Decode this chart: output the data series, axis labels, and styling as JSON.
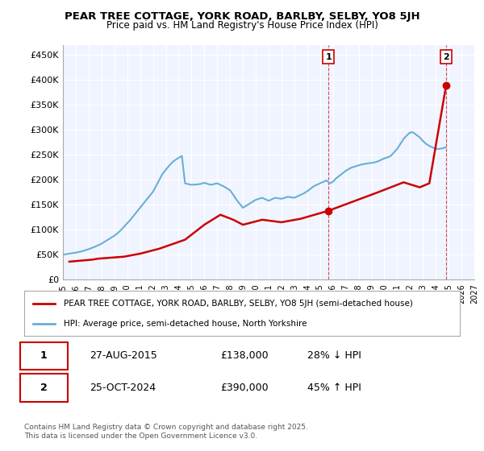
{
  "title": "PEAR TREE COTTAGE, YORK ROAD, BARLBY, SELBY, YO8 5JH",
  "subtitle": "Price paid vs. HM Land Registry's House Price Index (HPI)",
  "background_color": "#ffffff",
  "plot_bg_color": "#f0f4ff",
  "grid_color": "#ffffff",
  "ylim": [
    0,
    470000
  ],
  "yticks": [
    0,
    50000,
    100000,
    150000,
    200000,
    250000,
    300000,
    350000,
    400000,
    450000
  ],
  "ytick_labels": [
    "£0",
    "£50K",
    "£100K",
    "£150K",
    "£200K",
    "£250K",
    "£300K",
    "£350K",
    "£400K",
    "£450K"
  ],
  "xlim_start": 1995.0,
  "xlim_end": 2027.0,
  "xtick_years": [
    1995,
    1996,
    1997,
    1998,
    1999,
    2000,
    2001,
    2002,
    2003,
    2004,
    2005,
    2006,
    2007,
    2008,
    2009,
    2010,
    2011,
    2012,
    2013,
    2014,
    2015,
    2016,
    2017,
    2018,
    2019,
    2020,
    2021,
    2022,
    2023,
    2024,
    2025,
    2026,
    2027
  ],
  "marker1_x": 2015.65,
  "marker1_y": 138000,
  "marker1_label": "1",
  "marker2_x": 2024.81,
  "marker2_y": 390000,
  "marker2_label": "2",
  "vline1_x": 2015.65,
  "vline2_x": 2024.81,
  "hpi_color": "#6aaed6",
  "price_color": "#cc0000",
  "legend_entries": [
    "PEAR TREE COTTAGE, YORK ROAD, BARLBY, SELBY, YO8 5JH (semi-detached house)",
    "HPI: Average price, semi-detached house, North Yorkshire"
  ],
  "annotation1_date": "27-AUG-2015",
  "annotation1_price": "£138,000",
  "annotation1_hpi": "28% ↓ HPI",
  "annotation2_date": "25-OCT-2024",
  "annotation2_price": "£390,000",
  "annotation2_hpi": "45% ↑ HPI",
  "footnote": "Contains HM Land Registry data © Crown copyright and database right 2025.\nThis data is licensed under the Open Government Licence v3.0.",
  "hpi_data_x": [
    1995.0,
    1995.25,
    1995.5,
    1995.75,
    1996.0,
    1996.25,
    1996.5,
    1996.75,
    1997.0,
    1997.25,
    1997.5,
    1997.75,
    1998.0,
    1998.25,
    1998.5,
    1998.75,
    1999.0,
    1999.25,
    1999.5,
    1999.75,
    2000.0,
    2000.25,
    2000.5,
    2000.75,
    2001.0,
    2001.25,
    2001.5,
    2001.75,
    2002.0,
    2002.25,
    2002.5,
    2002.75,
    2003.0,
    2003.25,
    2003.5,
    2003.75,
    2004.0,
    2004.25,
    2004.5,
    2004.75,
    2005.0,
    2005.25,
    2005.5,
    2005.75,
    2006.0,
    2006.25,
    2006.5,
    2006.75,
    2007.0,
    2007.25,
    2007.5,
    2007.75,
    2008.0,
    2008.25,
    2008.5,
    2008.75,
    2009.0,
    2009.25,
    2009.5,
    2009.75,
    2010.0,
    2010.25,
    2010.5,
    2010.75,
    2011.0,
    2011.25,
    2011.5,
    2011.75,
    2012.0,
    2012.25,
    2012.5,
    2012.75,
    2013.0,
    2013.25,
    2013.5,
    2013.75,
    2014.0,
    2014.25,
    2014.5,
    2014.75,
    2015.0,
    2015.25,
    2015.5,
    2015.75,
    2016.0,
    2016.25,
    2016.5,
    2016.75,
    2017.0,
    2017.25,
    2017.5,
    2017.75,
    2018.0,
    2018.25,
    2018.5,
    2018.75,
    2019.0,
    2019.25,
    2019.5,
    2019.75,
    2020.0,
    2020.25,
    2020.5,
    2020.75,
    2021.0,
    2021.25,
    2021.5,
    2021.75,
    2022.0,
    2022.25,
    2022.5,
    2022.75,
    2023.0,
    2023.25,
    2023.5,
    2023.75,
    2024.0,
    2024.25,
    2024.5,
    2024.75
  ],
  "hpi_data_y": [
    50000,
    51000,
    52000,
    53000,
    54000,
    55500,
    57000,
    59000,
    61000,
    63500,
    66000,
    69000,
    72000,
    76000,
    80000,
    84000,
    88000,
    93000,
    99000,
    106000,
    113000,
    120000,
    128000,
    136000,
    144000,
    152000,
    160000,
    168000,
    176000,
    188000,
    200000,
    212000,
    220000,
    228000,
    235000,
    240000,
    244000,
    248000,
    193000,
    191500,
    190000,
    190500,
    191000,
    192000,
    194000,
    192000,
    190000,
    191500,
    193000,
    190000,
    187000,
    183000,
    179000,
    170000,
    160000,
    152000,
    144000,
    148000,
    152000,
    156000,
    160000,
    162000,
    164000,
    161000,
    158000,
    161000,
    164000,
    163000,
    162000,
    164000,
    166000,
    165000,
    164000,
    167000,
    170000,
    173000,
    177000,
    182000,
    187000,
    190000,
    193000,
    196000,
    199000,
    193000,
    196000,
    203000,
    208000,
    213000,
    218000,
    222000,
    225000,
    227000,
    229000,
    231000,
    232000,
    233000,
    234000,
    235000,
    237000,
    240000,
    243000,
    245000,
    248000,
    255000,
    262000,
    272000,
    282000,
    289000,
    295000,
    295000,
    290000,
    285000,
    278000,
    272000,
    268000,
    265000,
    262000,
    262000,
    263000,
    265000
  ],
  "price_data_x": [
    1995.5,
    1997.25,
    1997.75,
    1999.75,
    2001.0,
    2002.5,
    2004.5,
    2006.0,
    2007.25,
    2008.25,
    2009.0,
    2010.5,
    2012.0,
    2013.5,
    2015.65,
    2019.5,
    2021.5,
    2022.75,
    2023.5,
    2024.81
  ],
  "price_data_y": [
    36000,
    40000,
    42000,
    46000,
    52000,
    62000,
    80000,
    110000,
    130000,
    120000,
    110000,
    120000,
    115000,
    122000,
    138000,
    175000,
    195000,
    185000,
    193000,
    390000
  ]
}
